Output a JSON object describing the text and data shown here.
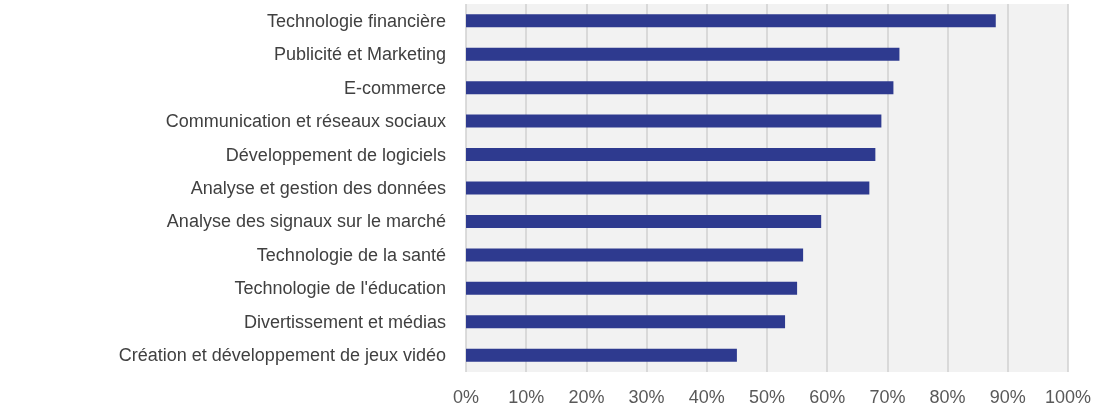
{
  "chart_data": {
    "type": "bar",
    "orientation": "horizontal",
    "categories": [
      "Technologie financière",
      "Publicité et Marketing",
      "E-commerce",
      "Communication et réseaux sociaux",
      "Développement de logiciels",
      "Analyse et gestion des données",
      "Analyse des signaux sur le marché",
      "Technologie de la santé",
      "Technologie de l'éducation",
      "Divertissement et médias",
      "Création et développement de jeux vidéo"
    ],
    "values": [
      88,
      72,
      71,
      69,
      68,
      67,
      59,
      56,
      55,
      53,
      45
    ],
    "color": "#2e3a8f",
    "xlim": [
      0,
      100
    ],
    "xticks": [
      {
        "value": 0,
        "label": "0%"
      },
      {
        "value": 10,
        "label": "10%"
      },
      {
        "value": 20,
        "label": "20%"
      },
      {
        "value": 30,
        "label": "30%"
      },
      {
        "value": 40,
        "label": "40%"
      },
      {
        "value": 50,
        "label": "50%"
      },
      {
        "value": 60,
        "label": "60%"
      },
      {
        "value": 70,
        "label": "70%"
      },
      {
        "value": 80,
        "label": "80%"
      },
      {
        "value": 90,
        "label": "90%"
      },
      {
        "value": 100,
        "label": "100%"
      }
    ],
    "grid": "x"
  }
}
